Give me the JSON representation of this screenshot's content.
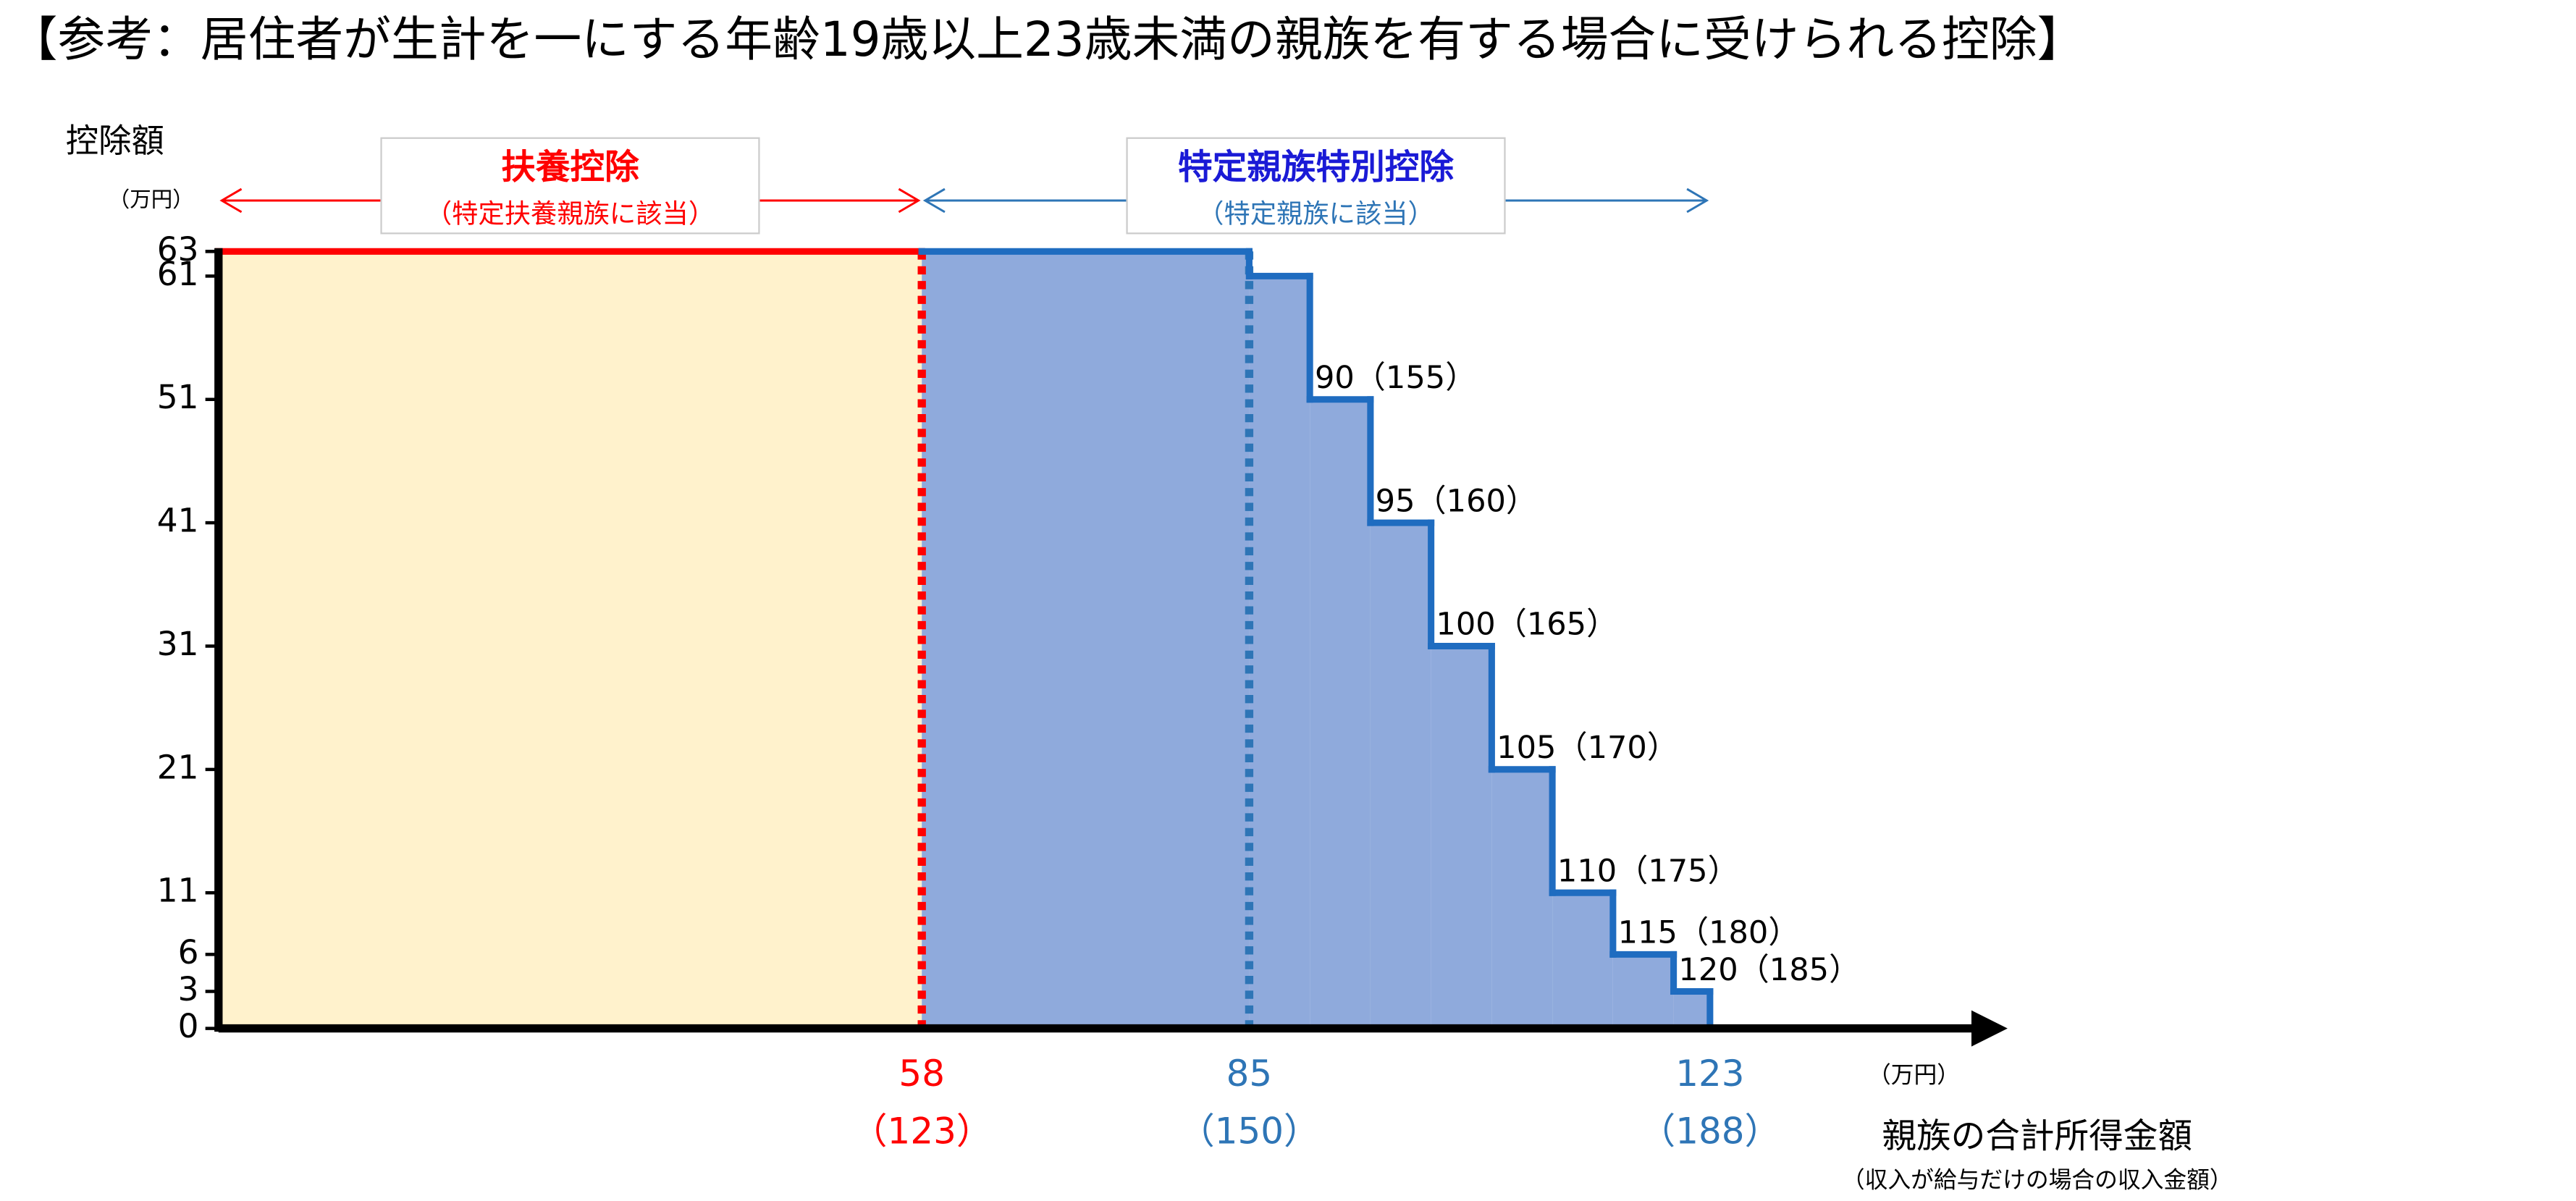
{
  "chart_data": {
    "type": "step",
    "title": "【参考：居住者が生計を一にする年齢19歳以上23歳未満の親族を有する場合に受けられる控除】",
    "y_label": "控除額",
    "y_unit": "（万円）",
    "x_label": "親族の合計所得金額",
    "x_label_sub": "（収入が給与だけの場合の収入金額）",
    "x_unit": "（万円）",
    "x": [
      0,
      85,
      90,
      95,
      100,
      105,
      110,
      115,
      120,
      123,
      131
    ],
    "values": [
      63,
      61,
      51,
      41,
      31,
      21,
      11,
      6,
      3,
      0,
      0
    ],
    "step_labels": [
      null,
      null,
      "90（155）",
      "95（160）",
      "100（165）",
      "105（170）",
      "110（175）",
      "115（180）",
      "120（185）",
      null,
      null
    ],
    "regions": [
      {
        "name": "扶養控除",
        "sub": "（特定扶養親族に該当）",
        "from": 0,
        "to": 58,
        "fill": "#fff2cc",
        "line": "#ff0000",
        "text_color": "#ff0000",
        "sub_color": "#ff0000"
      },
      {
        "name": "特定親族特別控除",
        "sub": "（特定親族に該当）",
        "from": 58,
        "to": 123,
        "fill": "#8faadc",
        "line": "#1f6cc0",
        "text_color": "#1a1ad6",
        "sub_color": "#2e75b6"
      }
    ],
    "xlim": [
      0,
      147
    ],
    "ylim": [
      0,
      63
    ],
    "yticks": [
      0,
      3,
      6,
      11,
      21,
      31,
      41,
      51,
      61,
      63
    ],
    "xticks": [
      58,
      85,
      123
    ],
    "xtick_sublabels": [
      "（123）",
      "（150）",
      "（188）"
    ],
    "xtick_colors": [
      "#ff0000",
      "#2e75b6",
      "#2e75b6"
    ],
    "xtick_lines": [
      true,
      true,
      false
    ]
  }
}
